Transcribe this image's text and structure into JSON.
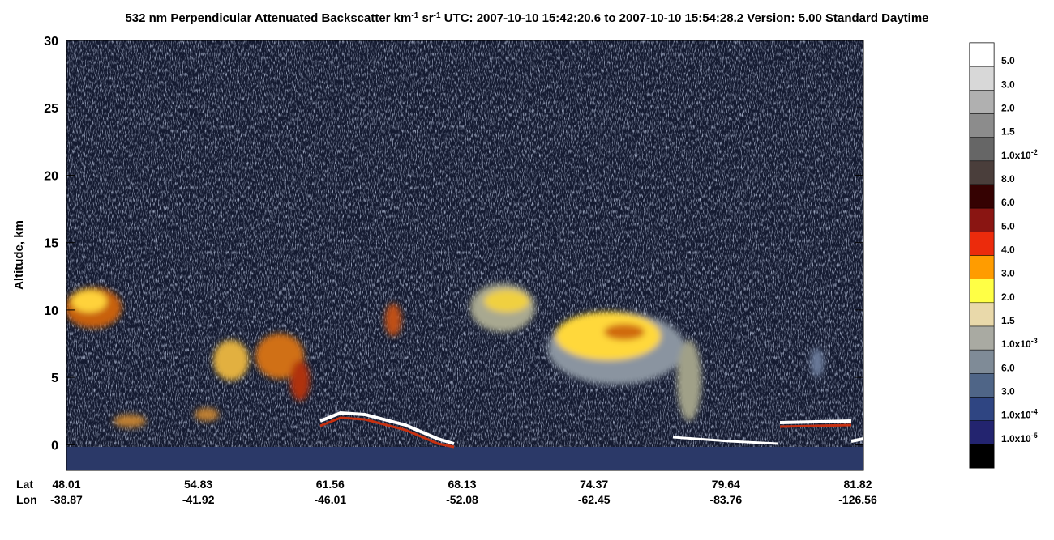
{
  "chart_data": {
    "type": "curtain",
    "title": [
      {
        "text": "532 nm Perpendicular Attenuated Backscatter km"
      },
      {
        "text": "-1",
        "sup": true
      },
      {
        "text": " sr"
      },
      {
        "text": "-1",
        "sup": true
      },
      {
        "text": "  UTC: 2007-10-10 15:42:20.6 to 2007-10-10 15:54:28.2  Version: 5.00 Standard Daytime"
      }
    ],
    "ylabel": "Altitude, km",
    "ylim": [
      -1.9,
      30
    ],
    "yticks": [
      0,
      5,
      10,
      15,
      20,
      25,
      30
    ],
    "xtick_rows": [
      {
        "name": "Lat",
        "labels": [
          "48.01",
          "54.83",
          "61.56",
          "68.13",
          "74.37",
          "79.64",
          "81.82"
        ]
      },
      {
        "name": "Lon",
        "labels": [
          "-38.87",
          "-41.92",
          "-46.01",
          "-52.08",
          "-62.45",
          "-83.76",
          "-126.56"
        ]
      }
    ],
    "colorbar": {
      "colors": [
        "#ffffff",
        "#d8d8d8",
        "#b0b0b0",
        "#8c8c8c",
        "#666666",
        "#4a3e3b",
        "#350202",
        "#8a1512",
        "#ec2b0c",
        "#ff9c00",
        "#ffff45",
        "#e9d9aa",
        "#a9aaa2",
        "#7f8b97",
        "#4f6587",
        "#2f4582",
        "#23246f",
        "#000000"
      ],
      "labels": [
        {
          "text": "5.0"
        },
        {
          "text": "3.0"
        },
        {
          "text": "2.0"
        },
        {
          "text": "1.5"
        },
        {
          "text": "1.0x10",
          "exp": "-2"
        },
        {
          "text": "8.0"
        },
        {
          "text": "6.0"
        },
        {
          "text": "5.0"
        },
        {
          "text": "4.0"
        },
        {
          "text": "3.0"
        },
        {
          "text": "2.0"
        },
        {
          "text": "1.5"
        },
        {
          "text": "1.0x10",
          "exp": "-3"
        },
        {
          "text": "6.0"
        },
        {
          "text": "3.0"
        },
        {
          "text": "1.0x10",
          "exp": "-4"
        },
        {
          "text": "1.0x10",
          "exp": "-5"
        }
      ]
    }
  }
}
